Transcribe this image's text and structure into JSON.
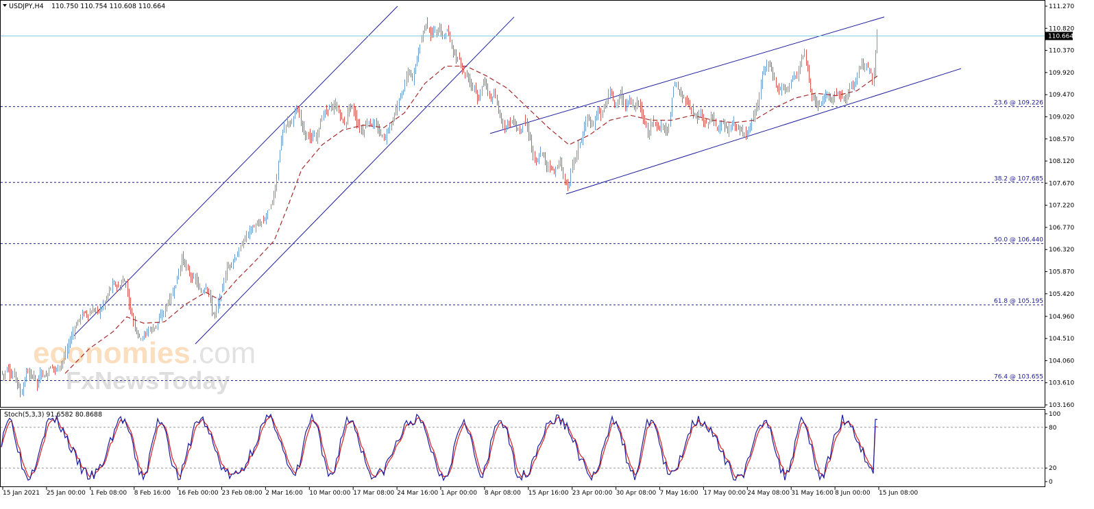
{
  "header": {
    "symbol": "USDJPY,H4",
    "ohlc": "110.750 110.754 110.608 110.664"
  },
  "current_price_label": "110.664",
  "watermark": {
    "brand": "economies",
    "brand_suffix": ".com",
    "sub": "FxNewsToday"
  },
  "indicator": {
    "label": "Stoch(5,3,3) 91.6582 80.8688",
    "levels": [
      "100",
      "80",
      "20",
      "0"
    ]
  },
  "colors": {
    "bull": "#6a9ad0",
    "bear": "#d9534f",
    "ma": "#a52a2a",
    "channel": "#1b1b9e",
    "fib": "#1a1a8c",
    "stoch_main": "#1a1a9e",
    "stoch_signal": "#d62020"
  },
  "chart_data": {
    "type": "candlestick",
    "price_axis_ticks": [
      "111.270",
      "110.820",
      "110.370",
      "109.920",
      "109.470",
      "109.020",
      "108.570",
      "108.120",
      "107.670",
      "107.220",
      "106.770",
      "106.320",
      "105.870",
      "105.420",
      "104.960",
      "104.510",
      "104.060",
      "103.610",
      "103.160"
    ],
    "price_range": [
      103.16,
      111.27
    ],
    "time_axis_labels": [
      "15 Jan 2021",
      "25 Jan 00:00",
      "1 Feb 08:00",
      "8 Feb 16:00",
      "16 Feb 00:00",
      "23 Feb 08:00",
      "2 Mar 16:00",
      "10 Mar 00:00",
      "17 Mar 08:00",
      "24 Mar 16:00",
      "1 Apr 00:00",
      "8 Apr 08:00",
      "15 Apr 16:00",
      "23 Apr 00:00",
      "30 Apr 08:00",
      "7 May 16:00",
      "17 May 00:00",
      "24 May 08:00",
      "31 May 16:00",
      "8 Jun 00:00",
      "15 Jun 08:00"
    ],
    "fibonacci_levels": [
      {
        "label": "23.6 @ 109.226",
        "price": 109.226
      },
      {
        "label": "38.2 @ 107.685",
        "price": 107.685
      },
      {
        "label": "50.0 @ 106.440",
        "price": 106.44
      },
      {
        "label": "61.8 @ 105.195",
        "price": 105.195
      },
      {
        "label": "76.4 @ 103.655",
        "price": 103.655
      }
    ],
    "current_price": 110.664,
    "price_path": [
      [
        0,
        103.88
      ],
      [
        6,
        103.75
      ],
      [
        12,
        103.95
      ],
      [
        17,
        103.72
      ],
      [
        22,
        103.82
      ],
      [
        27,
        103.55
      ],
      [
        31,
        103.38
      ],
      [
        35,
        103.55
      ],
      [
        40,
        103.88
      ],
      [
        45,
        103.72
      ],
      [
        50,
        103.8
      ],
      [
        55,
        103.55
      ],
      [
        60,
        103.85
      ],
      [
        64,
        103.78
      ],
      [
        68,
        103.72
      ],
      [
        72,
        103.9
      ],
      [
        77,
        103.95
      ],
      [
        82,
        103.84
      ],
      [
        86,
        103.95
      ],
      [
        90,
        104.0
      ],
      [
        95,
        104.15
      ],
      [
        100,
        104.35
      ],
      [
        106,
        104.6
      ],
      [
        112,
        104.8
      ],
      [
        118,
        104.95
      ],
      [
        124,
        105.05
      ],
      [
        130,
        104.98
      ],
      [
        135,
        105.08
      ],
      [
        140,
        105.1
      ],
      [
        145,
        105.05
      ],
      [
        150,
        105.15
      ],
      [
        155,
        105.3
      ],
      [
        160,
        105.48
      ],
      [
        165,
        105.62
      ],
      [
        170,
        105.6
      ],
      [
        175,
        105.52
      ],
      [
        180,
        105.72
      ],
      [
        185,
        105.6
      ],
      [
        190,
        105.15
      ],
      [
        196,
        104.85
      ],
      [
        200,
        104.65
      ],
      [
        205,
        104.52
      ],
      [
        210,
        104.58
      ],
      [
        214,
        104.6
      ],
      [
        218,
        104.72
      ],
      [
        222,
        104.68
      ],
      [
        226,
        104.75
      ],
      [
        230,
        104.8
      ],
      [
        234,
        104.95
      ],
      [
        240,
        105.05
      ],
      [
        245,
        105.25
      ],
      [
        250,
        105.35
      ],
      [
        256,
        105.58
      ],
      [
        262,
        105.88
      ],
      [
        266,
        106.15
      ],
      [
        270,
        106.05
      ],
      [
        274,
        105.9
      ],
      [
        278,
        105.8
      ],
      [
        282,
        105.7
      ],
      [
        286,
        105.75
      ],
      [
        290,
        105.55
      ],
      [
        294,
        105.45
      ],
      [
        298,
        105.52
      ],
      [
        302,
        105.6
      ],
      [
        306,
        105.4
      ],
      [
        310,
        105.05
      ],
      [
        314,
        104.98
      ],
      [
        318,
        105.18
      ],
      [
        322,
        105.35
      ],
      [
        326,
        105.6
      ],
      [
        332,
        105.95
      ],
      [
        338,
        106.05
      ],
      [
        344,
        106.15
      ],
      [
        350,
        106.3
      ],
      [
        356,
        106.5
      ],
      [
        362,
        106.65
      ],
      [
        368,
        106.75
      ],
      [
        374,
        106.8
      ],
      [
        380,
        106.85
      ],
      [
        386,
        106.92
      ],
      [
        392,
        107.1
      ],
      [
        398,
        107.3
      ],
      [
        404,
        107.7
      ],
      [
        408,
        108.3
      ],
      [
        413,
        108.7
      ],
      [
        418,
        108.85
      ],
      [
        422,
        108.95
      ],
      [
        426,
        108.8
      ],
      [
        430,
        109.1
      ],
      [
        434,
        109.25
      ],
      [
        438,
        109.0
      ],
      [
        442,
        108.85
      ],
      [
        446,
        108.6
      ],
      [
        450,
        108.75
      ],
      [
        454,
        108.5
      ],
      [
        458,
        108.65
      ],
      [
        462,
        108.6
      ],
      [
        466,
        108.8
      ],
      [
        470,
        109.0
      ],
      [
        474,
        109.1
      ],
      [
        478,
        109.15
      ],
      [
        482,
        109.25
      ],
      [
        486,
        109.15
      ],
      [
        490,
        109.3
      ],
      [
        494,
        109.12
      ],
      [
        498,
        109.05
      ],
      [
        502,
        108.85
      ],
      [
        506,
        108.95
      ],
      [
        510,
        109.25
      ],
      [
        514,
        109.2
      ],
      [
        518,
        109.1
      ],
      [
        522,
        108.85
      ],
      [
        526,
        108.8
      ],
      [
        530,
        108.7
      ],
      [
        534,
        108.85
      ],
      [
        538,
        108.95
      ],
      [
        542,
        108.85
      ],
      [
        546,
        108.9
      ],
      [
        550,
        108.8
      ],
      [
        554,
        108.7
      ],
      [
        558,
        108.65
      ],
      [
        562,
        108.55
      ],
      [
        566,
        108.75
      ],
      [
        570,
        108.85
      ],
      [
        574,
        108.95
      ],
      [
        578,
        109.15
      ],
      [
        582,
        109.3
      ],
      [
        586,
        109.5
      ],
      [
        590,
        109.6
      ],
      [
        594,
        109.85
      ],
      [
        598,
        109.95
      ],
      [
        602,
        109.75
      ],
      [
        606,
        110.05
      ],
      [
        610,
        110.25
      ],
      [
        614,
        110.55
      ],
      [
        618,
        110.75
      ],
      [
        622,
        110.95
      ],
      [
        626,
        110.8
      ],
      [
        630,
        110.65
      ],
      [
        634,
        110.8
      ],
      [
        638,
        110.7
      ],
      [
        642,
        110.85
      ],
      [
        646,
        110.6
      ],
      [
        650,
        110.72
      ],
      [
        654,
        110.8
      ],
      [
        658,
        110.55
      ],
      [
        662,
        110.35
      ],
      [
        666,
        110.15
      ],
      [
        670,
        110.25
      ],
      [
        674,
        110.05
      ],
      [
        678,
        109.9
      ],
      [
        682,
        109.85
      ],
      [
        686,
        109.75
      ],
      [
        690,
        109.62
      ],
      [
        694,
        109.68
      ],
      [
        698,
        109.25
      ],
      [
        702,
        109.55
      ],
      [
        706,
        109.78
      ],
      [
        710,
        109.62
      ],
      [
        714,
        109.45
      ],
      [
        718,
        109.35
      ],
      [
        722,
        109.5
      ],
      [
        726,
        109.25
      ],
      [
        730,
        109.05
      ],
      [
        734,
        108.9
      ],
      [
        738,
        108.78
      ],
      [
        742,
        108.95
      ],
      [
        746,
        108.88
      ],
      [
        750,
        108.95
      ],
      [
        754,
        108.8
      ],
      [
        758,
        108.7
      ],
      [
        762,
        108.85
      ],
      [
        766,
        108.95
      ],
      [
        770,
        108.75
      ],
      [
        774,
        108.58
      ],
      [
        778,
        108.25
      ],
      [
        782,
        108.05
      ],
      [
        786,
        108.15
      ],
      [
        790,
        108.32
      ],
      [
        794,
        108.2
      ],
      [
        798,
        108.0
      ],
      [
        802,
        108.05
      ],
      [
        806,
        107.95
      ],
      [
        810,
        107.88
      ],
      [
        814,
        108.05
      ],
      [
        818,
        108.1
      ],
      [
        822,
        107.8
      ],
      [
        826,
        107.7
      ],
      [
        830,
        107.55
      ],
      [
        834,
        107.95
      ],
      [
        838,
        108.15
      ],
      [
        842,
        108.25
      ],
      [
        846,
        108.5
      ],
      [
        850,
        108.6
      ],
      [
        854,
        108.85
      ],
      [
        858,
        109.05
      ],
      [
        862,
        108.85
      ],
      [
        866,
        108.8
      ],
      [
        870,
        109.05
      ],
      [
        874,
        109.2
      ],
      [
        878,
        109.0
      ],
      [
        882,
        109.25
      ],
      [
        886,
        109.3
      ],
      [
        890,
        109.55
      ],
      [
        894,
        109.45
      ],
      [
        898,
        109.15
      ],
      [
        902,
        109.35
      ],
      [
        906,
        109.55
      ],
      [
        910,
        109.3
      ],
      [
        914,
        109.2
      ],
      [
        918,
        109.4
      ],
      [
        922,
        109.35
      ],
      [
        926,
        109.15
      ],
      [
        930,
        109.35
      ],
      [
        934,
        109.25
      ],
      [
        938,
        109.0
      ],
      [
        942,
        108.95
      ],
      [
        946,
        108.6
      ],
      [
        950,
        108.85
      ],
      [
        954,
        108.95
      ],
      [
        958,
        108.85
      ],
      [
        962,
        108.75
      ],
      [
        966,
        108.9
      ],
      [
        970,
        108.8
      ],
      [
        974,
        108.65
      ],
      [
        978,
        108.95
      ],
      [
        982,
        109.6
      ],
      [
        986,
        109.7
      ],
      [
        990,
        109.55
      ],
      [
        994,
        109.45
      ],
      [
        998,
        109.4
      ],
      [
        1002,
        109.35
      ],
      [
        1006,
        109.25
      ],
      [
        1010,
        109.15
      ],
      [
        1014,
        109.05
      ],
      [
        1018,
        108.98
      ],
      [
        1022,
        109.1
      ],
      [
        1026,
        108.95
      ],
      [
        1030,
        108.85
      ],
      [
        1034,
        108.9
      ],
      [
        1038,
        109.05
      ],
      [
        1042,
        108.95
      ],
      [
        1046,
        108.75
      ],
      [
        1050,
        108.85
      ],
      [
        1054,
        108.9
      ],
      [
        1058,
        108.8
      ],
      [
        1062,
        108.7
      ],
      [
        1066,
        108.8
      ],
      [
        1070,
        108.9
      ],
      [
        1074,
        108.85
      ],
      [
        1078,
        108.75
      ],
      [
        1082,
        108.7
      ],
      [
        1086,
        108.75
      ],
      [
        1090,
        108.65
      ],
      [
        1094,
        108.8
      ],
      [
        1098,
        108.95
      ],
      [
        1102,
        109.1
      ],
      [
        1106,
        109.25
      ],
      [
        1110,
        109.6
      ],
      [
        1114,
        109.95
      ],
      [
        1118,
        110.0
      ],
      [
        1122,
        110.15
      ],
      [
        1126,
        109.95
      ],
      [
        1130,
        109.8
      ],
      [
        1134,
        109.6
      ],
      [
        1138,
        109.55
      ],
      [
        1142,
        109.65
      ],
      [
        1146,
        109.55
      ],
      [
        1150,
        109.6
      ],
      [
        1154,
        109.75
      ],
      [
        1158,
        109.85
      ],
      [
        1162,
        109.8
      ],
      [
        1166,
        109.95
      ],
      [
        1170,
        110.2
      ],
      [
        1174,
        110.3
      ],
      [
        1178,
        110.05
      ],
      [
        1182,
        109.7
      ],
      [
        1186,
        109.45
      ],
      [
        1190,
        109.35
      ],
      [
        1194,
        109.25
      ],
      [
        1198,
        109.3
      ],
      [
        1202,
        109.38
      ],
      [
        1206,
        109.5
      ],
      [
        1210,
        109.4
      ],
      [
        1214,
        109.35
      ],
      [
        1218,
        109.45
      ],
      [
        1222,
        109.55
      ],
      [
        1226,
        109.5
      ],
      [
        1230,
        109.4
      ],
      [
        1234,
        109.35
      ],
      [
        1238,
        109.5
      ],
      [
        1242,
        109.7
      ],
      [
        1246,
        109.65
      ],
      [
        1250,
        109.8
      ],
      [
        1254,
        110.05
      ],
      [
        1258,
        110.1
      ],
      [
        1262,
        110.0
      ],
      [
        1266,
        110.05
      ],
      [
        1270,
        109.95
      ],
      [
        1274,
        109.75
      ],
      [
        1277,
        110.15
      ],
      [
        1280,
        110.75
      ]
    ],
    "moving_average_path": [
      [
        95,
        103.8
      ],
      [
        130,
        104.3
      ],
      [
        165,
        104.65
      ],
      [
        185,
        104.95
      ],
      [
        210,
        104.82
      ],
      [
        240,
        104.85
      ],
      [
        270,
        105.2
      ],
      [
        300,
        105.45
      ],
      [
        320,
        105.3
      ],
      [
        345,
        105.7
      ],
      [
        370,
        106.05
      ],
      [
        400,
        106.5
      ],
      [
        420,
        107.2
      ],
      [
        440,
        107.95
      ],
      [
        470,
        108.45
      ],
      [
        500,
        108.75
      ],
      [
        530,
        108.85
      ],
      [
        560,
        108.8
      ],
      [
        590,
        109.1
      ],
      [
        620,
        109.7
      ],
      [
        650,
        110.05
      ],
      [
        680,
        110.05
      ],
      [
        710,
        109.85
      ],
      [
        740,
        109.6
      ],
      [
        770,
        109.2
      ],
      [
        800,
        108.8
      ],
      [
        830,
        108.45
      ],
      [
        860,
        108.65
      ],
      [
        890,
        108.95
      ],
      [
        920,
        109.05
      ],
      [
        950,
        108.95
      ],
      [
        980,
        108.95
      ],
      [
        1010,
        109.05
      ],
      [
        1040,
        108.95
      ],
      [
        1070,
        108.9
      ],
      [
        1100,
        108.95
      ],
      [
        1130,
        109.2
      ],
      [
        1160,
        109.4
      ],
      [
        1190,
        109.5
      ],
      [
        1220,
        109.45
      ],
      [
        1250,
        109.55
      ],
      [
        1280,
        109.85
      ]
    ],
    "trend_channels": [
      {
        "from": [
          108,
          104.57
        ],
        "to": [
          580,
          111.27
        ]
      },
      {
        "from": [
          285,
          104.4
        ],
        "to": [
          750,
          111.05
        ]
      },
      {
        "from": [
          715,
          108.68
        ],
        "to": [
          1290,
          111.05
        ]
      },
      {
        "from": [
          826,
          107.45
        ],
        "to": [
          1402,
          110.0
        ]
      }
    ],
    "stochastic": {
      "name": "Stoch(5,3,3)",
      "main_value": 91.6582,
      "signal_value": 80.8688,
      "levels": [
        100,
        80,
        20,
        0
      ],
      "range": [
        0,
        100
      ]
    }
  }
}
